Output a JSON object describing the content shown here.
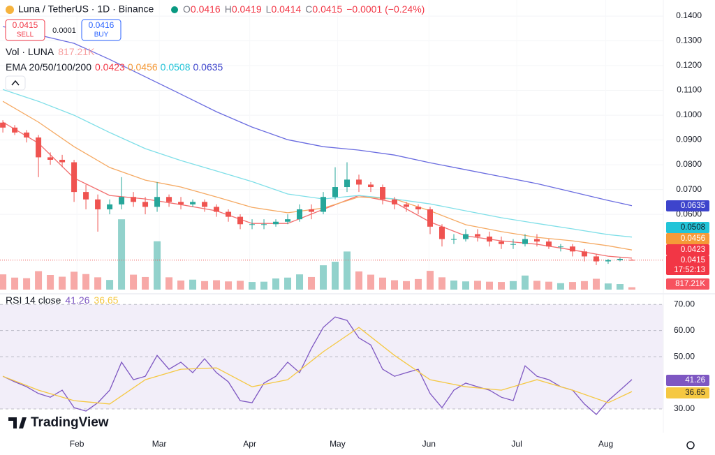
{
  "header": {
    "title": "Luna / TetherUS · 1D · Binance",
    "o_label": "O",
    "open": 0.0416,
    "h_label": "H",
    "high": 0.0419,
    "l_label": "L",
    "low": 0.0414,
    "c_label": "C",
    "close": 0.0415,
    "change": "−0.0001 (−0.24%)"
  },
  "trade": {
    "sell_price": 0.0415,
    "sell_label": "SELL",
    "spread": 0.0001,
    "buy_price": 0.0416,
    "buy_label": "BUY"
  },
  "countdown": "17:52:13",
  "logo": "TradingView",
  "chart_data": [
    {
      "type": "candlestick",
      "legend": {
        "volume_title": "Vol · LUNA",
        "volume_value": "817.21K",
        "ema_title": "EMA 20/50/100/200"
      },
      "xlim": [
        -0.24,
        55.65
      ],
      "xticks": [
        {
          "value": 6.24,
          "label": "Feb"
        },
        {
          "value": 13.18,
          "label": "Mar"
        },
        {
          "value": 20.8,
          "label": "Apr"
        },
        {
          "value": 28.2,
          "label": "May"
        },
        {
          "value": 35.9,
          "label": "Jun"
        },
        {
          "value": 43.3,
          "label": "Jul"
        },
        {
          "value": 50.8,
          "label": "Aug"
        }
      ],
      "ylim": [
        0.0296,
        0.1465
      ],
      "yticks": [
        {
          "value": 0.06,
          "label": "0.0600"
        },
        {
          "value": 0.07,
          "label": "0.0700"
        },
        {
          "value": 0.08,
          "label": "0.0800"
        },
        {
          "value": 0.09,
          "label": "0.0900"
        },
        {
          "value": 0.1,
          "label": "0.1000"
        },
        {
          "value": 0.11,
          "label": "0.1100"
        },
        {
          "value": 0.12,
          "label": "0.1200"
        },
        {
          "value": 0.13,
          "label": "0.1300"
        },
        {
          "value": 0.14,
          "label": "0.1400"
        }
      ],
      "grid": true,
      "up_color": "#26a69a",
      "down_color": "#ef5350",
      "open": [
        0.097,
        0.095,
        0.093,
        0.091,
        0.083,
        0.082,
        0.081,
        0.069,
        0.066,
        0.062,
        0.064,
        0.067,
        0.065,
        0.063,
        0.067,
        0.065,
        0.064,
        0.065,
        0.063,
        0.061,
        0.059,
        0.056,
        0.056,
        0.056,
        0.057,
        0.058,
        0.062,
        0.061,
        0.067,
        0.071,
        0.074,
        0.072,
        0.071,
        0.066,
        0.064,
        0.063,
        0.062,
        0.055,
        0.05,
        0.05,
        0.052,
        0.051,
        0.049,
        0.048,
        0.048,
        0.05,
        0.049,
        0.047,
        0.047,
        0.045,
        0.043,
        0.041,
        0.0415,
        0.0416
      ],
      "high": [
        0.098,
        0.096,
        0.094,
        0.092,
        0.085,
        0.084,
        0.082,
        0.072,
        0.068,
        0.066,
        0.075,
        0.069,
        0.067,
        0.073,
        0.068,
        0.067,
        0.066,
        0.066,
        0.064,
        0.062,
        0.06,
        0.058,
        0.058,
        0.058,
        0.06,
        0.064,
        0.064,
        0.069,
        0.079,
        0.081,
        0.076,
        0.073,
        0.072,
        0.067,
        0.065,
        0.064,
        0.063,
        0.056,
        0.052,
        0.054,
        0.054,
        0.053,
        0.051,
        0.05,
        0.052,
        0.052,
        0.05,
        0.048,
        0.048,
        0.046,
        0.044,
        0.042,
        0.0425,
        0.0419
      ],
      "low": [
        0.093,
        0.092,
        0.089,
        0.075,
        0.08,
        0.079,
        0.065,
        0.062,
        0.053,
        0.06,
        0.062,
        0.063,
        0.06,
        0.061,
        0.063,
        0.062,
        0.063,
        0.061,
        0.059,
        0.057,
        0.054,
        0.054,
        0.054,
        0.055,
        0.056,
        0.057,
        0.058,
        0.06,
        0.066,
        0.069,
        0.069,
        0.069,
        0.064,
        0.062,
        0.061,
        0.06,
        0.052,
        0.047,
        0.048,
        0.049,
        0.049,
        0.047,
        0.046,
        0.046,
        0.047,
        0.047,
        0.046,
        0.045,
        0.043,
        0.041,
        0.0395,
        0.04,
        0.041,
        0.0414
      ],
      "close": [
        0.095,
        0.093,
        0.091,
        0.083,
        0.082,
        0.081,
        0.069,
        0.066,
        0.062,
        0.064,
        0.067,
        0.065,
        0.063,
        0.067,
        0.065,
        0.064,
        0.065,
        0.063,
        0.061,
        0.059,
        0.056,
        0.056,
        0.056,
        0.057,
        0.058,
        0.062,
        0.061,
        0.067,
        0.071,
        0.074,
        0.072,
        0.071,
        0.066,
        0.064,
        0.063,
        0.062,
        0.055,
        0.05,
        0.05,
        0.052,
        0.051,
        0.049,
        0.048,
        0.048,
        0.05,
        0.049,
        0.047,
        0.047,
        0.045,
        0.043,
        0.041,
        0.0415,
        0.042,
        0.0415
      ],
      "volume": [
        5200000,
        4100000,
        3900000,
        6300000,
        5000000,
        4400000,
        6100000,
        5300000,
        4200000,
        3300000,
        24000000,
        5100000,
        4300000,
        16500000,
        4200000,
        3100000,
        3400000,
        2900000,
        3200000,
        2800000,
        3000000,
        2600000,
        2700000,
        3800000,
        4100000,
        5200000,
        4300000,
        8300000,
        9500000,
        13000000,
        6200000,
        5100000,
        4100000,
        3200000,
        2900000,
        3600000,
        6400000,
        4200000,
        3100000,
        2800000,
        3000000,
        2700000,
        2600000,
        2900000,
        4800000,
        3000000,
        2700000,
        2200000,
        2600000,
        2900000,
        3700000,
        2100000,
        1900000,
        817210
      ],
      "volume_lim": [
        0,
        25000000
      ],
      "series": [
        {
          "color": "#f26d6d",
          "x": [
            0,
            3,
            6,
            9,
            12,
            15,
            18,
            21,
            24,
            27,
            30,
            33,
            36,
            39,
            42,
            45,
            48,
            51,
            53
          ],
          "values": [
            0.0972,
            0.0887,
            0.0746,
            0.0676,
            0.0662,
            0.0639,
            0.0614,
            0.0563,
            0.0563,
            0.062,
            0.0676,
            0.0648,
            0.0569,
            0.0513,
            0.0493,
            0.0479,
            0.0456,
            0.0431,
            0.0423
          ]
        },
        {
          "color": "#f5a962",
          "x": [
            0,
            3,
            6,
            9,
            12,
            15,
            18,
            21,
            24,
            27,
            30,
            33,
            36,
            39,
            42,
            45,
            48,
            51,
            53
          ],
          "values": [
            0.1056,
            0.0972,
            0.0873,
            0.0789,
            0.0738,
            0.071,
            0.067,
            0.0628,
            0.0606,
            0.0625,
            0.067,
            0.0662,
            0.0614,
            0.0558,
            0.053,
            0.0507,
            0.0493,
            0.0473,
            0.0456
          ]
        },
        {
          "color": "#7fdfe8",
          "x": [
            0,
            3,
            6,
            9,
            12,
            15,
            18,
            21,
            24,
            27,
            30,
            33,
            36,
            39,
            42,
            45,
            48,
            51,
            53
          ],
          "values": [
            0.1104,
            0.1056,
            0.1,
            0.093,
            0.0865,
            0.0817,
            0.0775,
            0.0732,
            0.0682,
            0.0662,
            0.0676,
            0.0662,
            0.0642,
            0.0614,
            0.0586,
            0.0563,
            0.0541,
            0.0518,
            0.0508
          ]
        },
        {
          "color": "#6a6ce0",
          "x": [
            0,
            3,
            6,
            9,
            12,
            15,
            18,
            21,
            24,
            27,
            30,
            33,
            36,
            39,
            42,
            45,
            48,
            51,
            53
          ],
          "values": [
            0.1358,
            0.1324,
            0.129,
            0.1225,
            0.1155,
            0.1085,
            0.1014,
            0.0952,
            0.0901,
            0.0873,
            0.0859,
            0.0839,
            0.0808,
            0.078,
            0.0752,
            0.0724,
            0.069,
            0.0656,
            0.0635
          ]
        }
      ]
    },
    {
      "type": "line",
      "title": "RSI 14 close",
      "xlim": [
        -0.24,
        55.65
      ],
      "ylim": [
        22,
        73
      ],
      "yticks": [
        {
          "value": 30,
          "label": "30.00"
        },
        {
          "value": 50,
          "label": "50.00"
        },
        {
          "value": 60,
          "label": "60.00"
        },
        {
          "value": 70,
          "label": "70.00"
        }
      ],
      "band": [
        30,
        70
      ],
      "series": [
        {
          "color": "#7e57c2",
          "x": [
            0,
            1,
            2,
            3,
            4,
            5,
            6,
            7,
            8,
            9,
            10,
            11,
            12,
            13,
            14,
            15,
            16,
            17,
            18,
            19,
            20,
            21,
            22,
            23,
            24,
            25,
            26,
            27,
            28,
            29,
            30,
            31,
            32,
            33,
            34,
            35,
            36,
            37,
            38,
            39,
            40,
            41,
            42,
            43,
            44,
            45,
            46,
            47,
            48,
            49,
            50,
            51,
            52,
            53
          ],
          "values": [
            42.5,
            40.4,
            38.5,
            35.9,
            34.5,
            37.2,
            30.5,
            29.2,
            32.4,
            37.2,
            47.9,
            41.2,
            42.5,
            50.5,
            45.2,
            47.9,
            43.9,
            49.2,
            43.9,
            40.4,
            33.2,
            32.4,
            39.9,
            42.5,
            47.9,
            43.9,
            53.2,
            61.2,
            65.2,
            63.9,
            57.2,
            54.5,
            45.2,
            42.5,
            43.9,
            45.2,
            35.9,
            30.5,
            37.2,
            39.9,
            38.5,
            37.2,
            34.5,
            33.2,
            46.5,
            42.5,
            41.2,
            38.5,
            37.2,
            31.9,
            27.9,
            33.2,
            37.2,
            41.26
          ]
        },
        {
          "color": "#f5c842",
          "x": [
            0,
            3,
            6,
            9,
            12,
            15,
            18,
            21,
            24,
            27,
            30,
            33,
            36,
            39,
            42,
            45,
            48,
            51,
            53
          ],
          "values": [
            42.5,
            37.2,
            33.2,
            31.9,
            41.2,
            45.2,
            45.7,
            38.5,
            41.2,
            51.9,
            61.2,
            50.5,
            41.2,
            38.5,
            37.2,
            41.2,
            37.2,
            32.4,
            36.65
          ]
        }
      ]
    }
  ]
}
